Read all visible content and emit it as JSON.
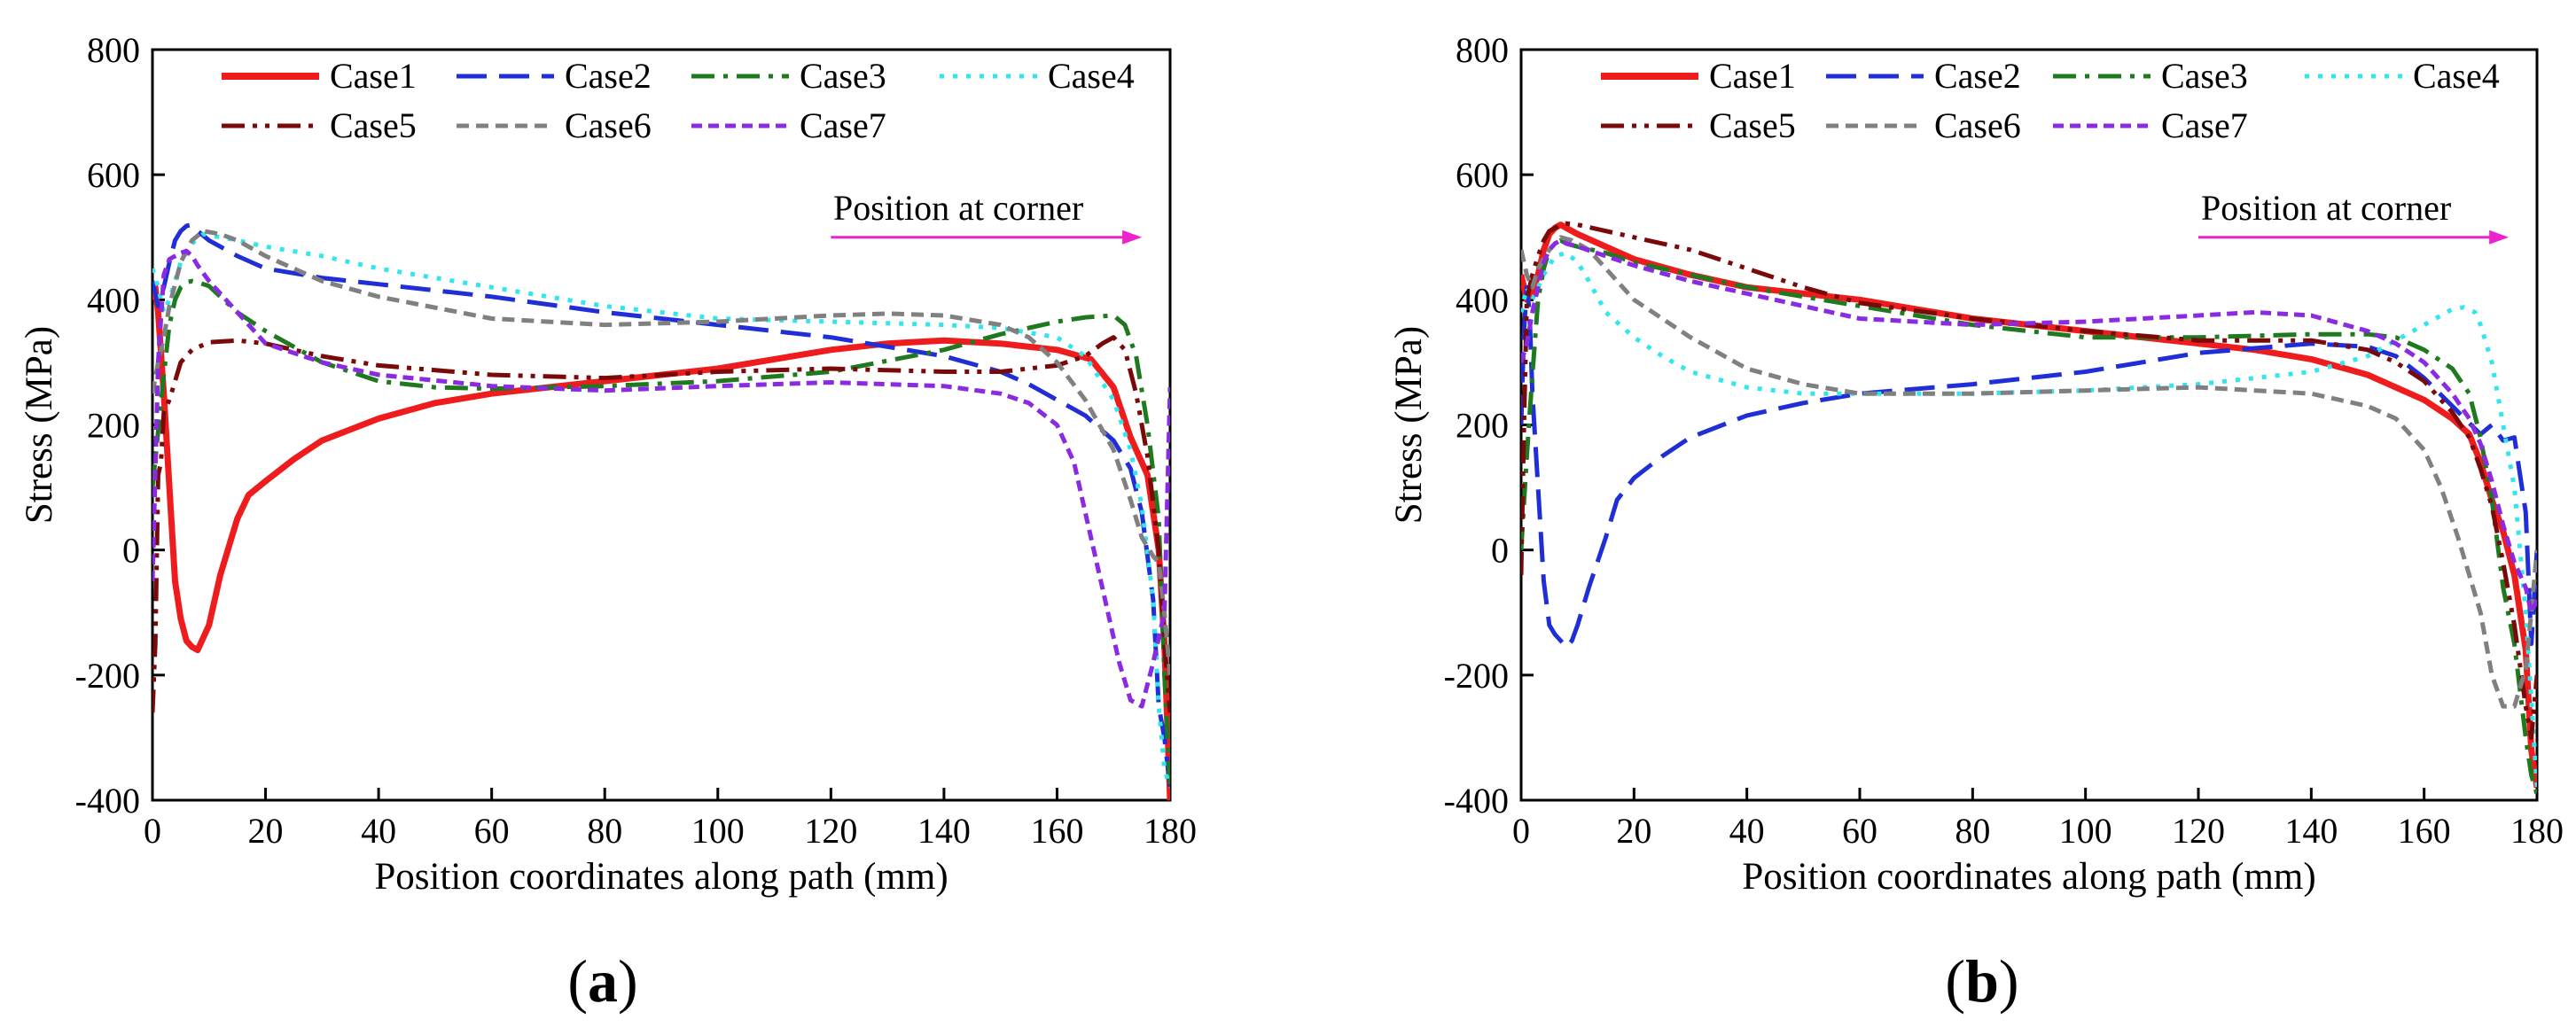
{
  "figure": {
    "series_styles": [
      {
        "name": "Case1",
        "color": "#ee1c1c",
        "dash": "none",
        "width": 7
      },
      {
        "name": "Case2",
        "color": "#1f2ed6",
        "dash": "34 14",
        "width": 5
      },
      {
        "name": "Case3",
        "color": "#1f7a1f",
        "dash": "26 10 5 10",
        "width": 5
      },
      {
        "name": "Case4",
        "color": "#33e6ee",
        "dash": "5 10",
        "width": 5
      },
      {
        "name": "Case5",
        "color": "#7a0a0a",
        "dash": "26 9 5 9 5 9",
        "width": 5
      },
      {
        "name": "Case6",
        "color": "#808080",
        "dash": "14 8",
        "width": 5
      },
      {
        "name": "Case7",
        "color": "#8a2be2",
        "dash": "12 7",
        "width": 5
      }
    ],
    "annotation_color": "#ee22cc"
  },
  "chart_data": [
    {
      "type": "line",
      "panel_label": "a",
      "xlabel": "Position coordinates along path (mm)",
      "ylabel": "Stress (MPa)",
      "xlim": [
        0,
        180
      ],
      "ylim": [
        -400,
        800
      ],
      "xticks": [
        0,
        20,
        40,
        60,
        80,
        100,
        120,
        140,
        160,
        180
      ],
      "yticks": [
        -400,
        -200,
        0,
        200,
        400,
        600,
        800
      ],
      "annotation": "Position at corner",
      "annotation_arrow": [
        120,
        175,
        500
      ],
      "legend_position": "top",
      "series": [
        {
          "name": "Case1",
          "x": [
            0,
            0.5,
            1,
            2,
            3,
            4,
            5,
            6,
            7,
            8,
            10,
            12,
            15,
            17,
            20,
            25,
            30,
            40,
            50,
            60,
            70,
            80,
            90,
            100,
            110,
            120,
            130,
            140,
            150,
            160,
            166,
            170,
            173,
            176,
            178,
            179,
            180
          ],
          "values": [
            400,
            420,
            380,
            250,
            100,
            -50,
            -110,
            -145,
            -155,
            -160,
            -120,
            -40,
            50,
            88,
            110,
            145,
            175,
            210,
            235,
            250,
            260,
            270,
            280,
            290,
            305,
            320,
            330,
            335,
            330,
            320,
            305,
            260,
            180,
            120,
            0,
            -150,
            -400
          ]
        },
        {
          "name": "Case2",
          "x": [
            0,
            1,
            2,
            3,
            4,
            5,
            6,
            7,
            8,
            10,
            15,
            20,
            30,
            40,
            60,
            80,
            100,
            120,
            140,
            150,
            155,
            160,
            165,
            170,
            173,
            175,
            177,
            178,
            179,
            180
          ],
          "values": [
            430,
            390,
            420,
            460,
            495,
            510,
            518,
            520,
            510,
            495,
            470,
            450,
            435,
            425,
            405,
            380,
            360,
            340,
            310,
            285,
            265,
            240,
            215,
            175,
            130,
            60,
            -80,
            -250,
            -300,
            -380
          ]
        },
        {
          "name": "Case3",
          "x": [
            0,
            1,
            2,
            3,
            4,
            5,
            6,
            7,
            8,
            10,
            12,
            15,
            20,
            30,
            40,
            50,
            60,
            80,
            100,
            120,
            140,
            150,
            160,
            165,
            170,
            172,
            174,
            176,
            178,
            179,
            180
          ],
          "values": [
            100,
            190,
            280,
            360,
            400,
            420,
            428,
            430,
            428,
            422,
            405,
            380,
            350,
            300,
            270,
            260,
            258,
            262,
            270,
            285,
            320,
            345,
            365,
            372,
            375,
            360,
            310,
            200,
            50,
            -200,
            -380
          ]
        },
        {
          "name": "Case4",
          "x": [
            0,
            1,
            2,
            3,
            5,
            7,
            9,
            12,
            15,
            20,
            30,
            40,
            60,
            80,
            100,
            120,
            140,
            150,
            160,
            165,
            170,
            173,
            175,
            177,
            178,
            179,
            180
          ],
          "values": [
            450,
            420,
            380,
            400,
            460,
            490,
            505,
            500,
            495,
            485,
            470,
            450,
            420,
            390,
            370,
            365,
            360,
            355,
            340,
            310,
            240,
            160,
            70,
            -80,
            -250,
            -350,
            -380
          ]
        },
        {
          "name": "Case5",
          "x": [
            0,
            0.5,
            1,
            1.5,
            2,
            3,
            4,
            5,
            7,
            10,
            15,
            20,
            30,
            40,
            60,
            80,
            100,
            120,
            140,
            150,
            160,
            165,
            168,
            170,
            172,
            174,
            176,
            178,
            179,
            180
          ],
          "values": [
            -260,
            -150,
            120,
            140,
            220,
            240,
            270,
            300,
            320,
            332,
            335,
            330,
            310,
            295,
            280,
            275,
            285,
            290,
            285,
            285,
            295,
            310,
            330,
            340,
            320,
            250,
            150,
            0,
            -150,
            -260
          ]
        },
        {
          "name": "Case6",
          "x": [
            0,
            1,
            2,
            3,
            5,
            7,
            9,
            12,
            15,
            20,
            30,
            40,
            60,
            80,
            100,
            120,
            130,
            140,
            150,
            155,
            160,
            165,
            170,
            173,
            175,
            177,
            178,
            179,
            180
          ],
          "values": [
            250,
            300,
            340,
            390,
            460,
            495,
            510,
            505,
            495,
            470,
            430,
            405,
            370,
            360,
            365,
            375,
            378,
            375,
            360,
            340,
            300,
            240,
            160,
            80,
            20,
            -10,
            -20,
            -100,
            -200
          ]
        },
        {
          "name": "Case7",
          "x": [
            0,
            1,
            2,
            3,
            4,
            5,
            6,
            7,
            8,
            10,
            15,
            20,
            30,
            40,
            60,
            80,
            100,
            120,
            140,
            150,
            155,
            160,
            163,
            165,
            168,
            171,
            173,
            175,
            177,
            179,
            180
          ],
          "values": [
            -50,
            300,
            440,
            465,
            470,
            475,
            478,
            470,
            455,
            430,
            380,
            330,
            300,
            280,
            262,
            255,
            262,
            268,
            262,
            250,
            235,
            200,
            140,
            60,
            -60,
            -180,
            -240,
            -250,
            -180,
            -100,
            260
          ]
        }
      ]
    },
    {
      "type": "line",
      "panel_label": "b",
      "xlabel": "Position coordinates along path (mm)",
      "ylabel": "Stress (MPa)",
      "xlim": [
        0,
        180
      ],
      "ylim": [
        -400,
        800
      ],
      "xticks": [
        0,
        20,
        40,
        60,
        80,
        100,
        120,
        140,
        160,
        180
      ],
      "yticks": [
        -400,
        -200,
        0,
        200,
        400,
        600,
        800
      ],
      "annotation": "Position at corner",
      "annotation_arrow": [
        120,
        175,
        500
      ],
      "legend_position": "top",
      "series": [
        {
          "name": "Case1",
          "x": [
            0,
            1,
            2,
            3,
            4,
            5,
            6,
            7,
            8,
            10,
            15,
            20,
            30,
            40,
            50,
            60,
            70,
            80,
            90,
            100,
            110,
            120,
            130,
            140,
            150,
            160,
            165,
            168,
            170,
            172,
            174,
            176,
            178,
            179,
            180
          ],
          "values": [
            440,
            400,
            410,
            440,
            480,
            505,
            515,
            520,
            515,
            505,
            485,
            465,
            440,
            420,
            410,
            400,
            385,
            370,
            360,
            350,
            340,
            330,
            320,
            305,
            280,
            240,
            210,
            185,
            140,
            80,
            30,
            -40,
            -160,
            -320,
            -380
          ]
        },
        {
          "name": "Case2",
          "x": [
            0,
            0.5,
            1,
            1.5,
            2,
            3,
            4,
            5,
            6,
            7,
            8,
            9,
            10,
            12,
            15,
            17,
            20,
            25,
            30,
            40,
            50,
            60,
            80,
            100,
            120,
            140,
            150,
            155,
            160,
            165,
            170,
            172,
            174,
            176,
            178,
            179,
            180
          ],
          "values": [
            200,
            350,
            420,
            380,
            250,
            100,
            -50,
            -120,
            -135,
            -145,
            -155,
            -145,
            -120,
            -60,
            20,
            80,
            115,
            150,
            180,
            215,
            235,
            250,
            265,
            285,
            315,
            330,
            325,
            310,
            275,
            230,
            185,
            200,
            175,
            180,
            60,
            -150,
            0
          ]
        },
        {
          "name": "Case3",
          "x": [
            0,
            1,
            2,
            3,
            4,
            5,
            6,
            7,
            8,
            10,
            15,
            20,
            30,
            40,
            60,
            80,
            100,
            120,
            140,
            150,
            155,
            160,
            165,
            168,
            170,
            172,
            174,
            176,
            178,
            179,
            180
          ],
          "values": [
            0,
            150,
            280,
            400,
            450,
            480,
            490,
            495,
            490,
            485,
            475,
            460,
            440,
            420,
            390,
            360,
            340,
            340,
            345,
            345,
            340,
            320,
            290,
            250,
            180,
            80,
            -60,
            -150,
            -300,
            -360,
            -390
          ]
        },
        {
          "name": "Case4",
          "x": [
            0,
            1,
            2,
            4,
            6,
            8,
            10,
            12,
            15,
            20,
            25,
            30,
            40,
            50,
            60,
            80,
            100,
            120,
            140,
            150,
            160,
            165,
            167,
            169,
            170,
            172,
            174,
            176,
            178,
            180
          ],
          "values": [
            380,
            420,
            400,
            440,
            470,
            475,
            460,
            430,
            380,
            340,
            310,
            285,
            260,
            250,
            250,
            250,
            255,
            265,
            285,
            310,
            360,
            385,
            388,
            380,
            360,
            300,
            200,
            100,
            -100,
            -380
          ]
        },
        {
          "name": "Case5",
          "x": [
            0,
            0.5,
            1,
            2,
            3,
            4,
            5,
            6,
            7,
            8,
            10,
            15,
            20,
            30,
            40,
            50,
            60,
            80,
            100,
            120,
            140,
            150,
            155,
            160,
            165,
            168,
            170,
            172,
            174,
            176,
            178,
            179,
            180
          ],
          "values": [
            -40,
            200,
            400,
            440,
            470,
            495,
            510,
            515,
            520,
            522,
            520,
            510,
            500,
            480,
            450,
            420,
            395,
            370,
            350,
            335,
            335,
            320,
            300,
            270,
            220,
            180,
            130,
            70,
            -20,
            -120,
            -250,
            -300,
            -200
          ]
        },
        {
          "name": "Case6",
          "x": [
            0,
            1,
            2,
            3,
            5,
            7,
            9,
            12,
            15,
            20,
            30,
            40,
            50,
            60,
            80,
            100,
            120,
            140,
            150,
            155,
            160,
            163,
            166,
            170,
            172,
            174,
            176,
            178,
            179,
            180
          ],
          "values": [
            480,
            440,
            420,
            450,
            480,
            500,
            495,
            480,
            450,
            400,
            340,
            290,
            265,
            250,
            250,
            255,
            260,
            250,
            230,
            210,
            160,
            100,
            20,
            -100,
            -200,
            -250,
            -250,
            -190,
            -100,
            0
          ]
        },
        {
          "name": "Case7",
          "x": [
            0,
            1,
            2,
            3,
            4,
            5,
            6,
            7,
            8,
            10,
            15,
            20,
            30,
            40,
            60,
            80,
            100,
            120,
            130,
            140,
            150,
            155,
            160,
            165,
            168,
            170,
            172,
            174,
            176,
            178,
            179,
            180
          ],
          "values": [
            300,
            330,
            380,
            420,
            460,
            480,
            490,
            495,
            490,
            485,
            470,
            455,
            430,
            410,
            370,
            360,
            365,
            375,
            380,
            375,
            350,
            330,
            300,
            250,
            210,
            170,
            110,
            40,
            -20,
            -60,
            -100,
            -80
          ]
        }
      ]
    }
  ]
}
